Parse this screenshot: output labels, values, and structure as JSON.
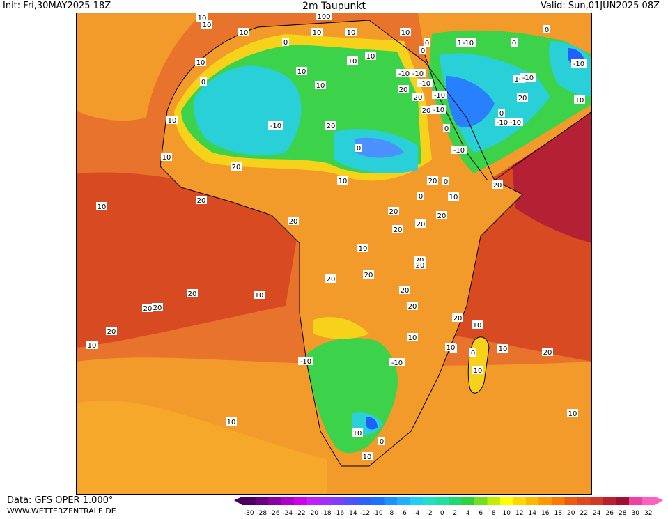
{
  "header": {
    "init": "Init: Fri,30MAY2025 18Z",
    "title": "2m Taupunkt",
    "valid": "Valid: Sun,01JUN2025 08Z"
  },
  "footer": {
    "source": "Data: GFS OPER 1.000°",
    "website": "WWW.WETTERZENTRALE.DE"
  },
  "legend": {
    "ticks": [
      "-30",
      "-28",
      "-26",
      "-24",
      "-22",
      "-20",
      "-18",
      "-16",
      "-14",
      "-12",
      "-10",
      "-8",
      "-6",
      "-4",
      "-2",
      "0",
      "2",
      "4",
      "6",
      "8",
      "10",
      "12",
      "14",
      "16",
      "18",
      "20",
      "22",
      "24",
      "26",
      "28",
      "30",
      "32"
    ],
    "colors": [
      "#4a0060",
      "#6a0080",
      "#8a00a0",
      "#b000c8",
      "#d000e8",
      "#c020ff",
      "#a030ff",
      "#7a40ff",
      "#5050ff",
      "#3060ff",
      "#1e70ff",
      "#1e90ff",
      "#20b0ff",
      "#20d0f0",
      "#20e0c8",
      "#20e0a0",
      "#20d870",
      "#30d040",
      "#70e020",
      "#c0f000",
      "#ffff00",
      "#ffd800",
      "#ffb800",
      "#ff9800",
      "#ff7800",
      "#f05a10",
      "#e04820",
      "#d03828",
      "#b82030",
      "#a01030",
      "#f040a0",
      "#ff60c0"
    ]
  },
  "map_labels": [
    "10",
    "100",
    "10",
    "10",
    "10",
    "0",
    "10",
    "10",
    "0",
    "10",
    "10",
    "0",
    "10",
    "-10",
    "0",
    "0",
    "10",
    "-10",
    "10",
    "0",
    "10",
    "-10",
    "-10",
    "-10",
    "10",
    "-10",
    "10",
    "20",
    "-10",
    "20",
    "-10",
    "10",
    "-10",
    "0",
    "20",
    "-10",
    "-10",
    "20",
    "0",
    "0",
    "20",
    "-10",
    "10",
    "20",
    "10",
    "20",
    "0",
    "0",
    "10",
    "20",
    "10",
    "20",
    "20",
    "20",
    "20",
    "20",
    "10",
    "20",
    "10",
    "20",
    "20",
    "20",
    "20",
    "20",
    "10",
    "20",
    "20",
    "20",
    "10",
    "20",
    "20",
    "20",
    "10",
    "10",
    "0",
    "10",
    "20",
    "0",
    "10",
    "-10",
    "-10",
    "10",
    "0",
    "10",
    "10",
    "10",
    "10"
  ],
  "colors": {
    "ocean": "#e56a2a",
    "warm": "#d84a22",
    "orange": "#f29a2a",
    "yellow": "#f6d21a",
    "green": "#3cd24a",
    "cyan": "#2ad0d8",
    "blue": "#2060ff",
    "maroon": "#b42034"
  }
}
